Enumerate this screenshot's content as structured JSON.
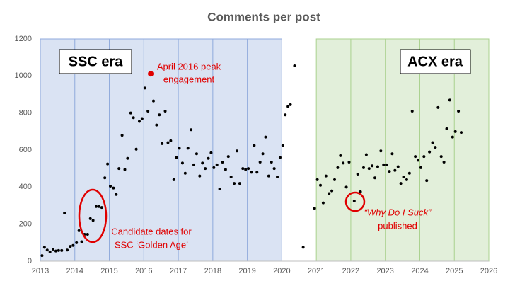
{
  "chart_data": {
    "type": "scatter",
    "title": "Comments per post",
    "xlim": [
      2013,
      2026
    ],
    "xticks": [
      2013,
      2014,
      2015,
      2016,
      2017,
      2018,
      2019,
      2020,
      2021,
      2022,
      2023,
      2024,
      2025,
      2026
    ],
    "ylim": [
      0,
      1200
    ],
    "yticks": [
      0,
      200,
      400,
      600,
      800,
      1000,
      1200
    ],
    "grid": "x",
    "regions": [
      {
        "label": "SSC era",
        "x": [
          2013,
          2020
        ],
        "color": "#dae3f3",
        "border": "#8faadc"
      },
      {
        "label": "ACX era",
        "x": [
          2021,
          2026
        ],
        "color": "#e2efda",
        "border": "#a9d18e"
      }
    ],
    "series": [
      {
        "color": "#000000",
        "x": [
          2013.05,
          2013.12,
          2013.2,
          2013.28,
          2013.37,
          2013.45,
          2013.53,
          2013.62,
          2013.7,
          2013.78,
          2013.87,
          2013.95,
          2014.05,
          2014.12,
          2014.2,
          2014.28,
          2014.37,
          2014.45,
          2014.53,
          2014.62,
          2014.7,
          2014.78,
          2014.87,
          2014.95,
          2015.03,
          2015.12,
          2015.2,
          2015.28,
          2015.37,
          2015.45,
          2015.53,
          2015.62,
          2015.7,
          2015.78,
          2015.87,
          2015.95,
          2016.03,
          2016.12,
          2016.28,
          2016.37,
          2016.45,
          2016.53,
          2016.62,
          2016.7,
          2016.78,
          2016.87,
          2016.95,
          2017.03,
          2017.12,
          2017.2,
          2017.28,
          2017.37,
          2017.45,
          2017.53,
          2017.62,
          2017.7,
          2017.78,
          2017.87,
          2017.95,
          2018.03,
          2018.12,
          2018.2,
          2018.28,
          2018.37,
          2018.45,
          2018.53,
          2018.62,
          2018.7,
          2018.78,
          2018.87,
          2018.95,
          2019.03,
          2019.12,
          2019.2,
          2019.28,
          2019.37,
          2019.45,
          2019.53,
          2019.62,
          2019.7,
          2019.78,
          2019.87,
          2019.95,
          2020.03,
          2020.1,
          2020.18,
          2020.25,
          2020.37,
          2020.62,
          2020.95,
          2021.03,
          2021.12,
          2021.2,
          2021.28,
          2021.37,
          2021.45,
          2021.53,
          2021.62,
          2021.7,
          2021.78,
          2021.87,
          2021.95,
          2022.1,
          2022.2,
          2022.28,
          2022.37,
          2022.45,
          2022.53,
          2022.62,
          2022.7,
          2022.78,
          2022.87,
          2022.95,
          2023.03,
          2023.12,
          2023.2,
          2023.28,
          2023.37,
          2023.45,
          2023.53,
          2023.62,
          2023.7,
          2023.78,
          2023.87,
          2023.95,
          2024.03,
          2024.12,
          2024.2,
          2024.28,
          2024.37,
          2024.45,
          2024.53,
          2024.62,
          2024.7,
          2024.78,
          2024.87,
          2024.95,
          2025.03,
          2025.12,
          2025.2
        ],
        "values": [
          30,
          75,
          60,
          50,
          65,
          55,
          58,
          58,
          260,
          60,
          80,
          85,
          100,
          165,
          105,
          145,
          145,
          230,
          220,
          295,
          295,
          290,
          450,
          525,
          405,
          395,
          360,
          500,
          680,
          495,
          555,
          800,
          775,
          605,
          755,
          770,
          935,
          810,
          865,
          735,
          790,
          635,
          810,
          640,
          650,
          440,
          560,
          610,
          530,
          475,
          610,
          710,
          520,
          580,
          460,
          530,
          500,
          555,
          585,
          505,
          520,
          390,
          535,
          495,
          565,
          455,
          420,
          595,
          420,
          500,
          495,
          500,
          480,
          625,
          480,
          535,
          580,
          670,
          460,
          535,
          500,
          455,
          560,
          625,
          790,
          835,
          845,
          1055,
          75,
          285,
          440,
          410,
          315,
          460,
          365,
          380,
          440,
          505,
          570,
          530,
          400,
          535,
          325,
          470,
          375,
          505,
          575,
          500,
          515,
          450,
          510,
          595,
          520,
          520,
          485,
          580,
          490,
          510,
          420,
          455,
          440,
          475,
          810,
          565,
          545,
          505,
          565,
          435,
          590,
          640,
          615,
          830,
          565,
          535,
          715,
          870,
          670,
          700,
          810,
          695
        ]
      }
    ],
    "highlight": {
      "x": 2016.2,
      "y": 1012,
      "color": "#e00000"
    },
    "annotations": [
      {
        "lines": [
          "April 2016 peak",
          "engagement"
        ]
      },
      {
        "lines": [
          "Candidate dates for",
          "SSC ‘Golden Age’"
        ]
      },
      {
        "lines": [
          "“Why Do I Suck”",
          "published"
        ]
      }
    ]
  }
}
